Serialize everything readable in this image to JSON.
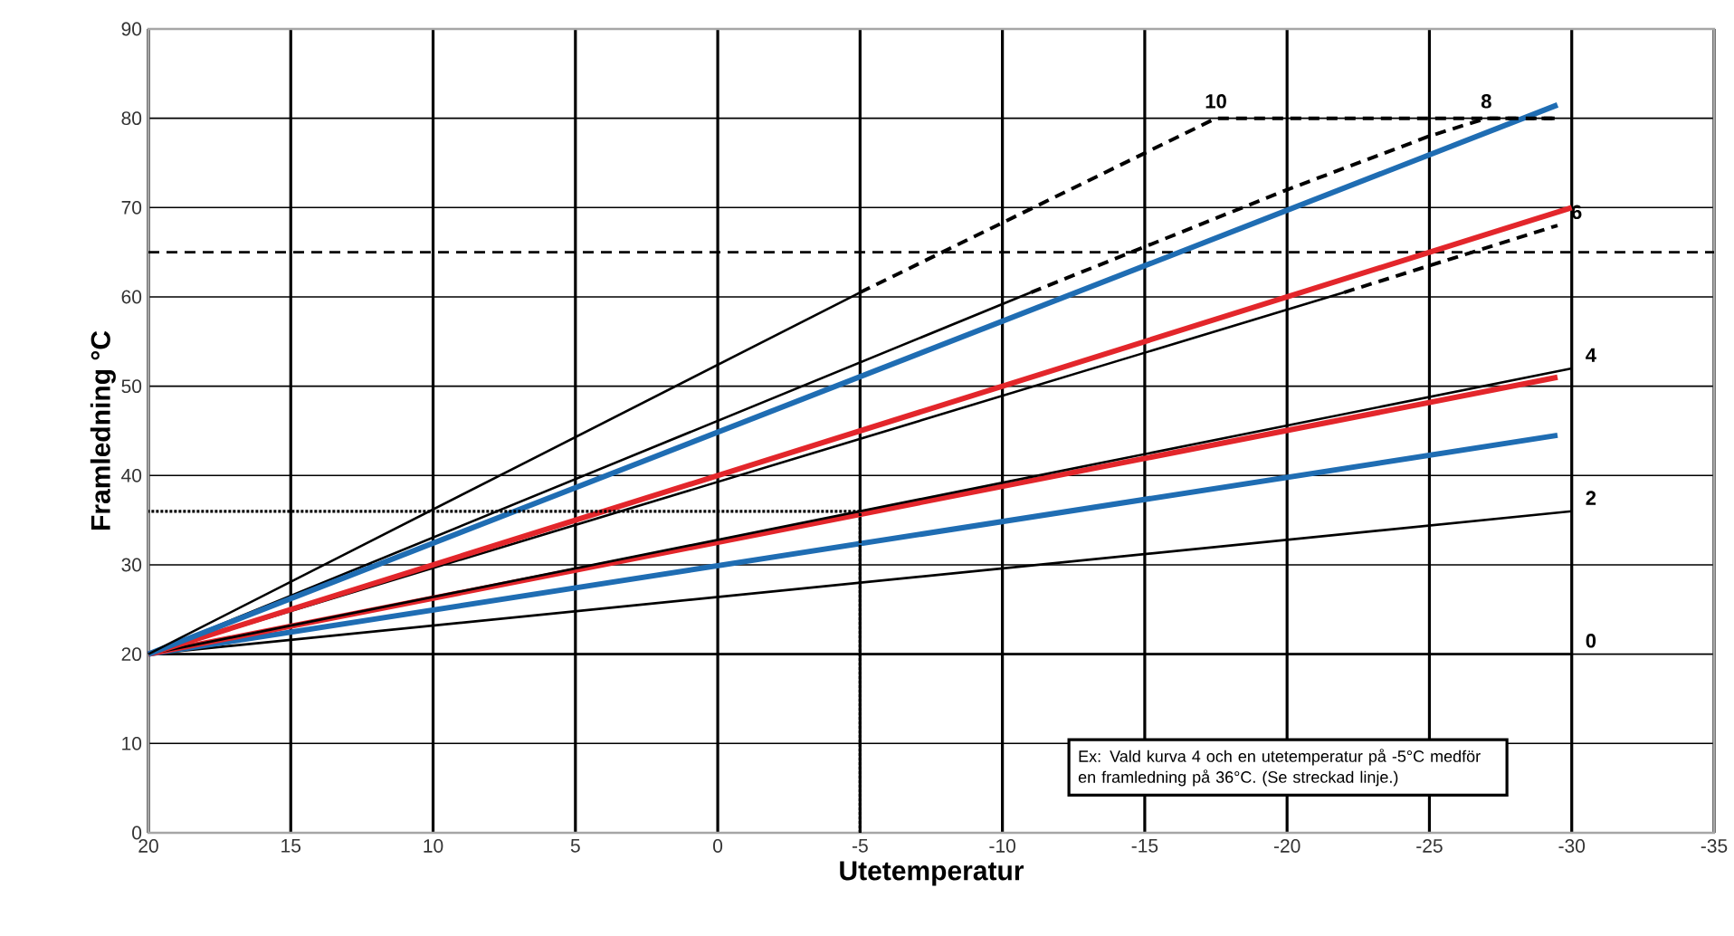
{
  "chart_data": {
    "type": "line",
    "xlabel": "Utetemperatur",
    "ylabel": "Framledning °C",
    "xlim": [
      20,
      -35
    ],
    "xticks": [
      20,
      15,
      10,
      5,
      0,
      -5,
      -10,
      -15,
      -20,
      -25,
      -30,
      -35
    ],
    "ylim": [
      0,
      90
    ],
    "yticks": [
      0,
      10,
      20,
      30,
      40,
      50,
      60,
      70,
      80,
      90
    ],
    "grid": true,
    "marker": "none",
    "series": [
      {
        "name": "0",
        "color": "#000000",
        "x": [
          20,
          -30
        ],
        "values": [
          20,
          20
        ]
      },
      {
        "name": "2",
        "color": "#000000",
        "x": [
          20,
          -30
        ],
        "values": [
          20,
          36
        ]
      },
      {
        "color": "#1f6db3",
        "x": [
          20,
          -29.5
        ],
        "values": [
          20,
          44.5
        ]
      },
      {
        "color": "#e3262b",
        "x": [
          20,
          -29.5
        ],
        "values": [
          20,
          51
        ]
      },
      {
        "name": "4",
        "color": "#000000",
        "x": [
          20,
          -30
        ],
        "values": [
          20,
          52
        ]
      },
      {
        "color": "#000000",
        "x": [
          20,
          -22
        ],
        "values": [
          20,
          60.5
        ]
      },
      {
        "name": "6",
        "color": "#000000",
        "line_style": "dashed",
        "x": [
          -22,
          -29.5
        ],
        "values": [
          60.5,
          68
        ]
      },
      {
        "color": "#e3262b",
        "x": [
          20,
          -30
        ],
        "values": [
          20,
          70
        ]
      },
      {
        "color": "#000000",
        "x": [
          20,
          -11
        ],
        "values": [
          20,
          60.5
        ]
      },
      {
        "name": "8",
        "color": "#000000",
        "line_style": "dashed",
        "x": [
          -11,
          -20,
          -25,
          -27,
          -29.5
        ],
        "values": [
          60.5,
          72,
          78,
          80,
          80
        ]
      },
      {
        "color": "#1f6db3",
        "x": [
          20,
          -29.5
        ],
        "values": [
          20,
          81.5
        ]
      },
      {
        "color": "#000000",
        "x": [
          20,
          -5
        ],
        "values": [
          20,
          60.5
        ]
      },
      {
        "name": "10",
        "color": "#000000",
        "line_style": "dashed",
        "x": [
          -5,
          -17.5,
          -29.5
        ],
        "values": [
          60.5,
          80,
          80
        ]
      },
      {
        "color": "#000000",
        "line_style": "dotted",
        "x": [
          -5,
          -5
        ],
        "values": [
          0,
          36
        ]
      },
      {
        "color": "#000000",
        "line_style": "dotted",
        "x": [
          -5,
          20
        ],
        "values": [
          36,
          36
        ]
      }
    ],
    "ref_lines": [
      {
        "axis": "y",
        "value": 65,
        "color": "#000000",
        "line_style": "dashed"
      }
    ],
    "annotations": [
      "Ex: Vald kurva 4 och en utetemperatur på -5°C medför en framledning på 36°C. (Se streckad linje.)"
    ]
  }
}
